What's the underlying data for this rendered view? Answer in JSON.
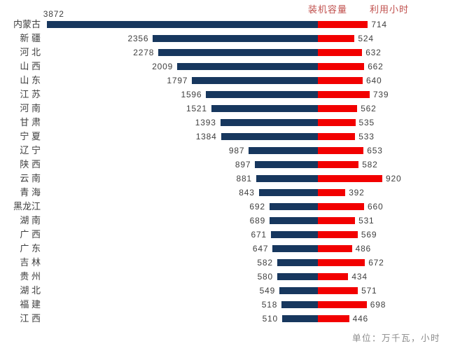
{
  "headers": {
    "capacity": "装机容量",
    "hours": "利用小时"
  },
  "footer": {
    "unit_note": "单位：万千瓦，小时"
  },
  "colors": {
    "capacity_bar": "#17375E",
    "hours_bar": "#F20000",
    "header_text": "#C0504D",
    "value_text": "#404040",
    "footer_text": "#8A8A8A",
    "background": "#FFFFFF"
  },
  "chart_data": {
    "type": "bar",
    "orientation": "horizontal-diverging",
    "title": "",
    "xlabel": "",
    "ylabel": "",
    "unit": "万千瓦, 小时",
    "legend_position": "top",
    "grid": false,
    "categories": [
      "内蒙古",
      "新 疆",
      "河 北",
      "山 西",
      "山 东",
      "江 苏",
      "河 南",
      "甘 肃",
      "宁 夏",
      "辽 宁",
      "陕 西",
      "云 南",
      "青 海",
      "黑龙江",
      "湖 南",
      "广 西",
      "广 东",
      "吉 林",
      "贵 州",
      "湖 北",
      "福 建",
      "江 西"
    ],
    "series": [
      {
        "name": "装机容量",
        "color": "#17375E",
        "direction": "left",
        "values": [
          3872,
          2356,
          2278,
          2009,
          1797,
          1596,
          1521,
          1393,
          1384,
          987,
          897,
          881,
          843,
          692,
          689,
          671,
          647,
          582,
          580,
          549,
          518,
          510
        ]
      },
      {
        "name": "利用小时",
        "color": "#F20000",
        "direction": "right",
        "values": [
          714,
          524,
          632,
          662,
          640,
          739,
          562,
          535,
          533,
          653,
          582,
          920,
          392,
          660,
          531,
          569,
          486,
          672,
          434,
          571,
          698,
          446
        ]
      }
    ]
  }
}
